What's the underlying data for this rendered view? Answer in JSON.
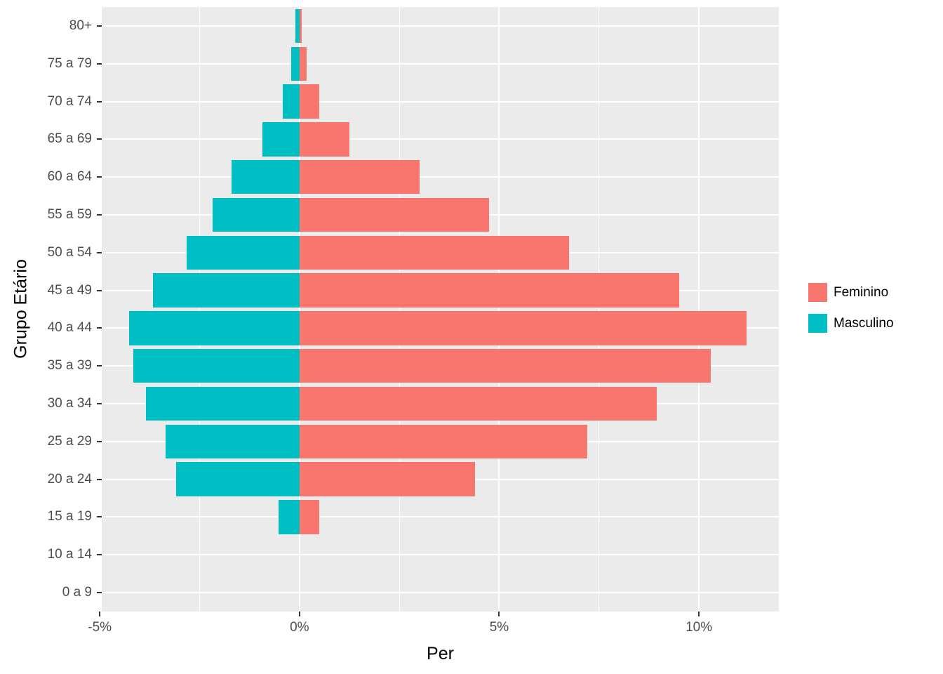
{
  "chart_data": {
    "type": "bar",
    "variant": "population-pyramid",
    "title": "",
    "xlabel": "Per",
    "ylabel": "Grupo Etário",
    "categories_order": "bottom-to-top",
    "categories": [
      "0 a 9",
      "10 a 14",
      "15 a 19",
      "20 a 24",
      "25 a 29",
      "30 a 34",
      "35 a 39",
      "40 a 44",
      "45 a 49",
      "50 a 54",
      "55 a 59",
      "60 a 64",
      "65 a 69",
      "70 a 74",
      "75 a 79",
      "80+"
    ],
    "series": [
      {
        "name": "Feminino",
        "color": "#F8766D",
        "values": [
          0,
          0,
          0.5,
          4.4,
          7.2,
          8.95,
          10.3,
          11.2,
          9.5,
          6.75,
          4.75,
          3.0,
          1.25,
          0.5,
          0.18,
          0.06
        ]
      },
      {
        "name": "Masculino",
        "color": "#00BFC4",
        "values": [
          0,
          0,
          -0.53,
          -3.09,
          -3.35,
          -3.84,
          -4.16,
          -4.26,
          -3.67,
          -2.82,
          -2.18,
          -1.7,
          -0.93,
          -0.42,
          -0.21,
          -0.11
        ]
      }
    ],
    "x_ticks": [
      {
        "value": -5,
        "label": "-5%"
      },
      {
        "value": 0,
        "label": "0%"
      },
      {
        "value": 5,
        "label": "5%"
      },
      {
        "value": 10,
        "label": "10%"
      }
    ],
    "x_minor_ticks": [
      -2.5,
      2.5,
      7.5
    ],
    "xlim": [
      -4.95,
      12.0
    ],
    "bar_relative_height": 0.9,
    "grid": true,
    "grid_color": "#FFFFFF",
    "panel_background": "#EBEBEB",
    "legend_position": "right"
  }
}
